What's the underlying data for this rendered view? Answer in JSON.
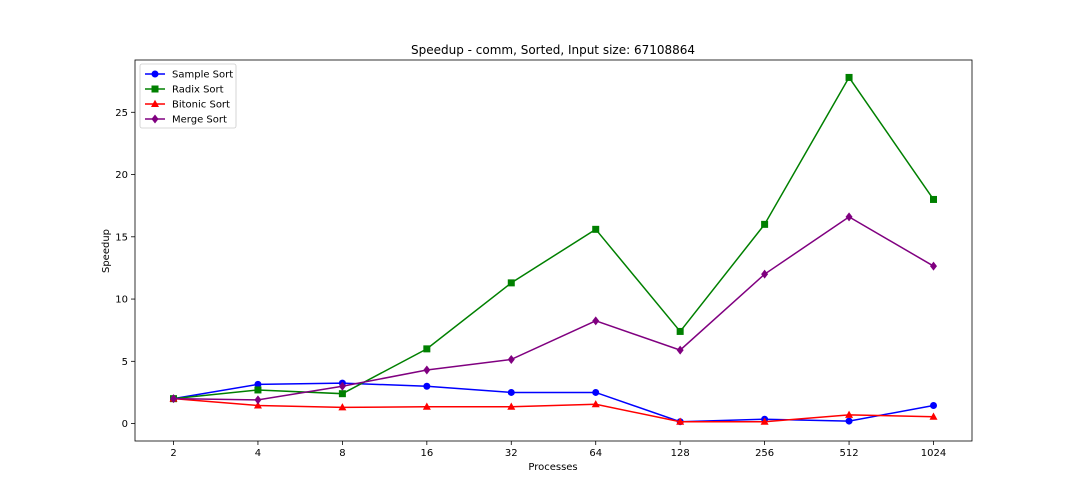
{
  "chart_data": {
    "type": "line",
    "title": "Speedup - comm, Sorted, Input size: 67108864",
    "xlabel": "Processes",
    "ylabel": "Speedup",
    "categories": [
      "2",
      "4",
      "8",
      "16",
      "32",
      "64",
      "128",
      "256",
      "512",
      "1024"
    ],
    "ylim": [
      -1.4,
      29.2
    ],
    "yticks": [
      0,
      5,
      10,
      15,
      20,
      25
    ],
    "grid": false,
    "legend_position": "upper-left",
    "series": [
      {
        "name": "Sample Sort",
        "color": "#0000ff",
        "marker": "circle",
        "values": [
          2.0,
          3.15,
          3.25,
          3.0,
          2.5,
          2.5,
          0.15,
          0.35,
          0.2,
          1.45
        ]
      },
      {
        "name": "Radix Sort",
        "color": "#008000",
        "marker": "square",
        "values": [
          2.0,
          2.7,
          2.4,
          6.0,
          11.3,
          15.6,
          7.4,
          16.0,
          27.8,
          18.0
        ]
      },
      {
        "name": "Bitonic Sort",
        "color": "#ff0000",
        "marker": "triangle",
        "values": [
          2.0,
          1.45,
          1.3,
          1.35,
          1.35,
          1.55,
          0.15,
          0.15,
          0.7,
          0.55
        ]
      },
      {
        "name": "Merge Sort",
        "color": "#800080",
        "marker": "diamond",
        "values": [
          2.0,
          1.9,
          3.0,
          4.3,
          5.15,
          8.25,
          5.9,
          12.0,
          16.6,
          12.65
        ]
      }
    ]
  }
}
